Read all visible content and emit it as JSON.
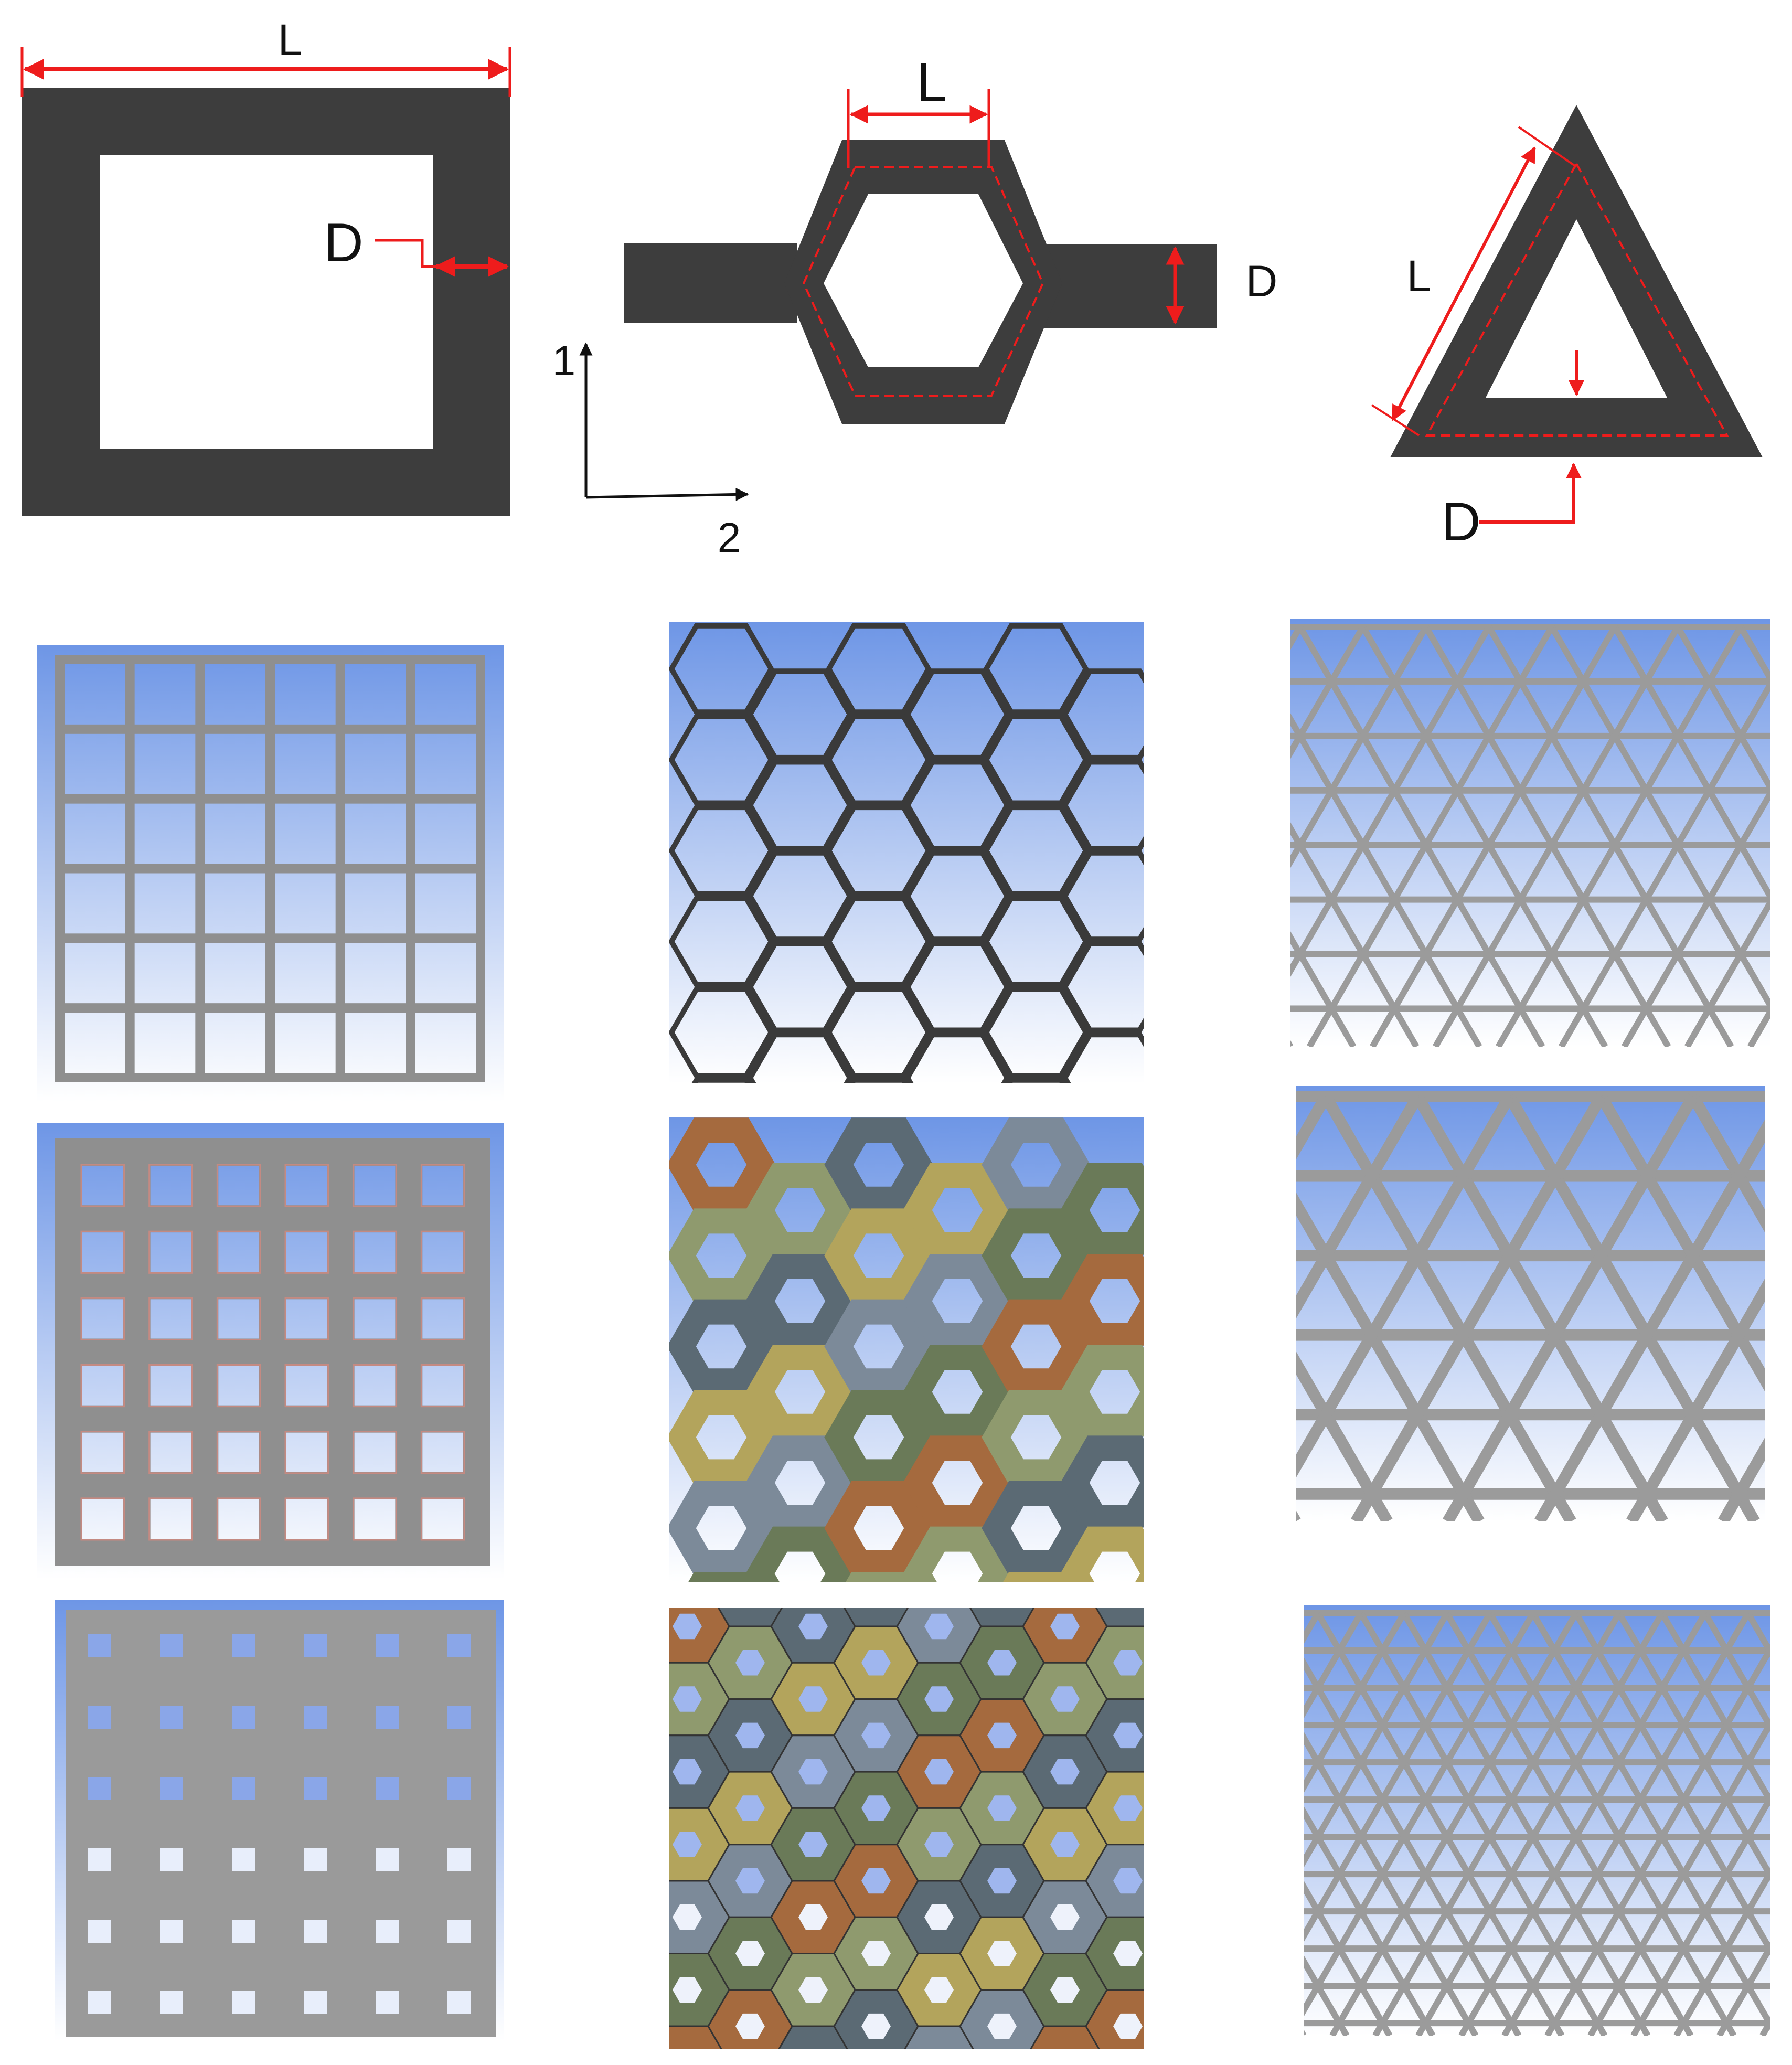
{
  "colors": {
    "cell_wall": "#3d3d3d",
    "dimension": "#ee1c1c",
    "axis": "#111111",
    "panel_top": "#6e96e6",
    "panel_bottom": "#ffffff",
    "square_mesh_grid": "#8f8f8f",
    "square_mesh_outline": "#c48a82",
    "solid_plate": "#9a9a9a",
    "hexagon_outline": "#3a3a3a",
    "triangle_grid": "#9b9b9b",
    "mesh_palette": [
      "#a56a3e",
      "#8f9a6e",
      "#5b6a74",
      "#b3a45c",
      "#7c8a99",
      "#6a7a58"
    ]
  },
  "labels": {
    "square_length": "L",
    "square_thickness": "D",
    "hex_length": "L",
    "hex_thickness": "D",
    "tri_length": "L",
    "tri_thickness": "D",
    "axis_1": "1",
    "axis_2": "2"
  },
  "unit_cells": [
    {
      "name": "square",
      "walls_dashed_midline": false
    },
    {
      "name": "hexagon",
      "walls_dashed_midline": true
    },
    {
      "name": "triangle",
      "walls_dashed_midline": true
    }
  ],
  "lattice_grid": {
    "square_column": {
      "rows": 6,
      "columns": 6,
      "variants": [
        "thin-wall",
        "medium-wall",
        "thick-wall"
      ]
    },
    "hexagon_column": {
      "variants": [
        "thin-wall",
        "medium-wall-meshed",
        "thick-wall-meshed"
      ]
    },
    "triangle_column": {
      "variants": [
        "thin-wall",
        "medium-wall",
        "fine-lattice"
      ]
    }
  }
}
